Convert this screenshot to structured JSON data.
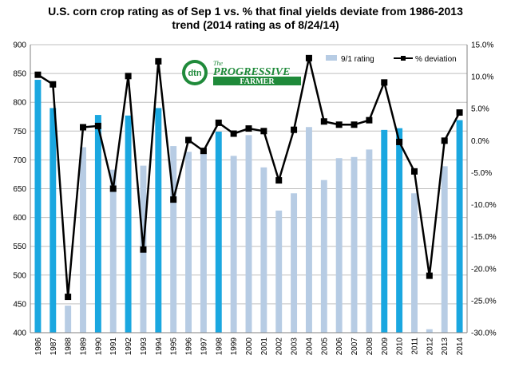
{
  "chart_data": {
    "type": "bar",
    "title_line1": "U.S. corn crop rating as of Sep 1 vs. % that final yields deviate from 1986-2013",
    "title_line2": "trend (2014 rating as of 8/24/14)",
    "categories": [
      "1986",
      "1987",
      "1988",
      "1989",
      "1990",
      "1991",
      "1992",
      "1993",
      "1994",
      "1995",
      "1996",
      "1997",
      "1998",
      "1999",
      "2000",
      "2001",
      "2002",
      "2003",
      "2004",
      "2005",
      "2006",
      "2007",
      "2008",
      "2009",
      "2010",
      "2011",
      "2012",
      "2013",
      "2014"
    ],
    "series": [
      {
        "name": "9/1 rating",
        "kind": "bar",
        "axis": "left",
        "values": [
          839,
          790,
          447,
          722,
          778,
          683,
          777,
          690,
          790,
          724,
          714,
          712,
          749,
          707,
          743,
          687,
          612,
          642,
          757,
          665,
          703,
          705,
          718,
          752,
          755,
          642,
          406,
          689,
          769
        ]
      },
      {
        "name": "% deviation",
        "kind": "line",
        "axis": "right",
        "values": [
          10.3,
          8.8,
          -24.4,
          2.1,
          2.3,
          -7.5,
          10.1,
          -17.0,
          12.4,
          -9.2,
          0.1,
          -1.6,
          2.8,
          1.1,
          1.9,
          1.5,
          -6.2,
          1.7,
          12.9,
          3.0,
          2.5,
          2.5,
          3.2,
          9.1,
          -0.2,
          -4.8,
          -21.1,
          0.0,
          4.4
        ]
      }
    ],
    "highlight_years": [
      "1986",
      "1987",
      "1990",
      "1992",
      "1994",
      "1998",
      "2009",
      "2010",
      "2014"
    ],
    "colors": {
      "highlight_bar": "#1AA7E0",
      "normal_bar": "#B7CCE4",
      "line": "#000000",
      "grid": "#BFBFBF"
    },
    "ylim_left": [
      400,
      900
    ],
    "yticks_left": [
      400,
      450,
      500,
      550,
      600,
      650,
      700,
      750,
      800,
      850,
      900
    ],
    "ylim_right": [
      -30,
      15
    ],
    "yticks_right_labels": [
      "-30.0%",
      "-25.0%",
      "-20.0%",
      "-15.0%",
      "-10.0%",
      "-5.0%",
      "0.0%",
      "5.0%",
      "10.0%",
      "15.0%"
    ],
    "grid": true,
    "legend_position": "top-right"
  },
  "logo": {
    "mark": "dtn",
    "name_line1": "The",
    "name_line2": "PROGRESSIVE",
    "name_line3": "FARMER"
  }
}
